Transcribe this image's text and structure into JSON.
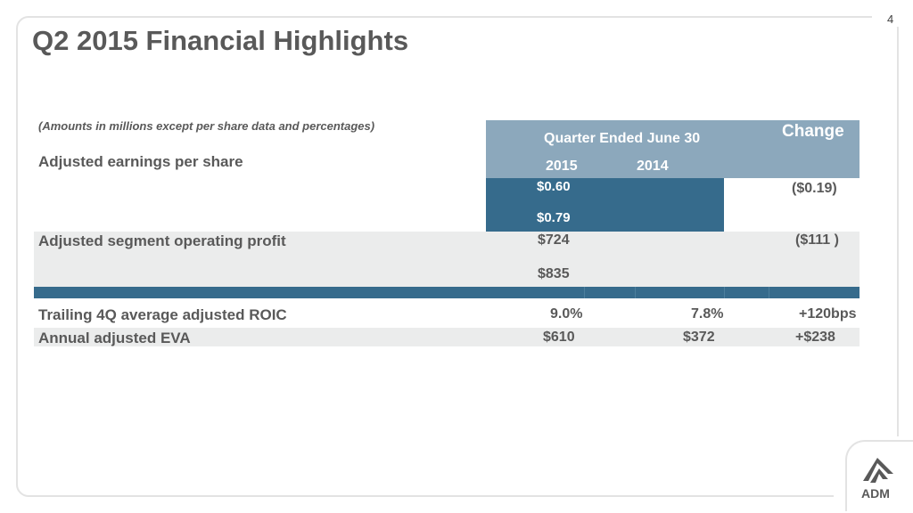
{
  "slide": {
    "page_number": "4",
    "title": "Q2 2015 Financial Highlights",
    "note": "(Amounts in millions except per share data and percentages)"
  },
  "table": {
    "header": {
      "quarter_label": "Quarter Ended June 30",
      "year_2015": "2015",
      "year_2014": "2014",
      "change": "Change"
    },
    "rows": [
      {
        "label": "Adjusted earnings per share",
        "v2015": "$0.60",
        "v2014": "$0.79",
        "change": "($0.19)"
      },
      {
        "label": "Adjusted segment operating profit",
        "v2015": "$724",
        "v2014": "$835",
        "change": "($111 )"
      },
      {
        "label": "Trailing 4Q average adjusted ROIC",
        "v2015": "9.0%",
        "v2014": "7.8%",
        "change": "+120bps"
      },
      {
        "label": "Annual adjusted EVA",
        "v2015": "$610",
        "v2014": "$372",
        "change": "+$238"
      }
    ]
  },
  "logo": {
    "name": "adm-logo-icon",
    "text": "ADM"
  },
  "colors": {
    "header_fill": "#8ca8bc",
    "dark_fill": "#366b8c",
    "row_gray": "#ebecec",
    "text": "#595959"
  }
}
